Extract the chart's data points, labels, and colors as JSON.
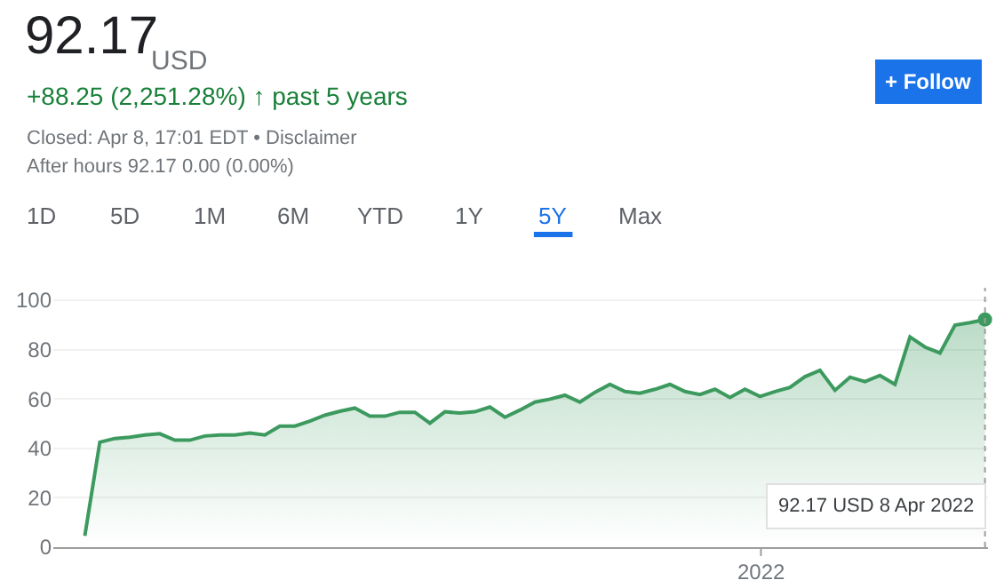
{
  "chart_data": {
    "type": "area",
    "title": "92.17",
    "annotations": [
      "USD",
      "+88.25 (2,251.28%) ↑ past 5 years",
      "Closed: Apr 8, 17:01 EDT • Disclaimer",
      "After hours 92.17 0.00 (0.00%)",
      "+ Follow",
      "1D",
      "5D",
      "1M",
      "6M",
      "YTD",
      "1Y",
      "5Y",
      "Max",
      "2022",
      "92.17 USD 8 Apr 2022"
    ],
    "categories": [
      null,
      null,
      null,
      null,
      null,
      null,
      null,
      null,
      null,
      null,
      null,
      null,
      null,
      null,
      null,
      null,
      null,
      null,
      null,
      null,
      null,
      null,
      null,
      null,
      null,
      null,
      null,
      null,
      null,
      null,
      null,
      null,
      null,
      null,
      null,
      null,
      null,
      null,
      null,
      null,
      null,
      null,
      null,
      null,
      null,
      null,
      null,
      null,
      null,
      null,
      null,
      null,
      null,
      null,
      null,
      null,
      null,
      null,
      null,
      null,
      null
    ],
    "series": [
      {
        "color": "#3d9a5f",
        "values": [
          4.6,
          42.5,
          44,
          44.5,
          45.4,
          45.9,
          43.3,
          43.3,
          45,
          45.4,
          45.4,
          46.2,
          45.4,
          49,
          49,
          51,
          53.4,
          55,
          56.3,
          53,
          53,
          54.6,
          54.6,
          50.2,
          54.8,
          54.3,
          54.8,
          56.7,
          52.6,
          55.5,
          58.7,
          59.9,
          61.5,
          58.7,
          62.7,
          65.9,
          63,
          62.3,
          63.9,
          65.9,
          63,
          61.8,
          63.9,
          60.6,
          63.9,
          61,
          63,
          64.7,
          69,
          71.6,
          63.5,
          68.8,
          67,
          69.5,
          65.9,
          85.1,
          81,
          78.6,
          89.9,
          90.9,
          92.17
        ]
      }
    ],
    "ylim": [
      0,
      105
    ],
    "yticks": [
      0,
      20,
      40,
      60,
      80,
      100
    ],
    "grid": "y",
    "marker": "none",
    "line_style": "solid"
  }
}
